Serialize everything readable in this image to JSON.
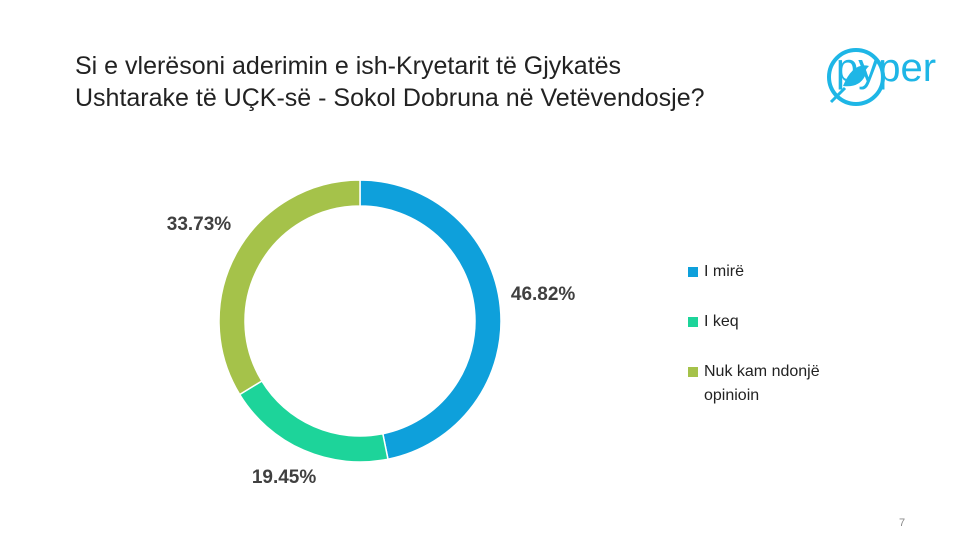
{
  "title_lines": [
    "Si e vlerësoni aderimin e ish-Kryetarit të Gjykatës",
    "Ushtarake të UÇK-së - Sokol Dobruna në Vetëvendosje?"
  ],
  "logo_text": "pyper",
  "page_number": "7",
  "chart_data": {
    "type": "donut",
    "categories": [
      "I mirë",
      "I keq",
      "Nuk kam ndonjë opinioin"
    ],
    "values": [
      46.82,
      19.45,
      33.73
    ],
    "value_labels": [
      "46.82%",
      "19.45%",
      "33.73%"
    ],
    "colors": [
      "#0ea0db",
      "#1dd49a",
      "#a5c24a"
    ]
  }
}
